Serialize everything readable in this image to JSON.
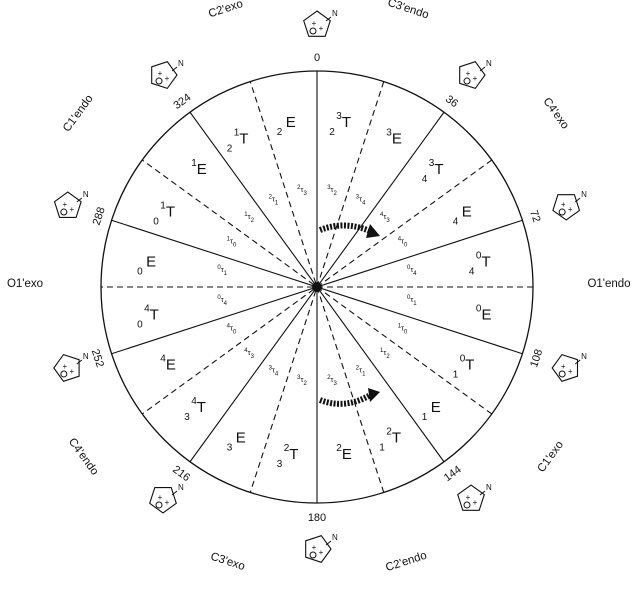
{
  "degree_labels": [
    "0",
    "36",
    "72",
    "108",
    "144",
    "180",
    "216",
    "252",
    "288",
    "324"
  ],
  "conformation_labels": [
    {
      "text": "C2'exo"
    },
    {
      "text": "C3'endo"
    },
    {
      "text": "C4'exo"
    },
    {
      "text": "O1'endo"
    },
    {
      "text": "C1'exo"
    },
    {
      "text": "C2'endo"
    },
    {
      "text": "C3'exo"
    },
    {
      "text": "C4'endo"
    },
    {
      "text": "O1'exo"
    },
    {
      "text": "C1'endo"
    }
  ],
  "outer_symbols": [
    {
      "sup": "3",
      "base": "T",
      "sub": "2",
      "kind": "T"
    },
    {
      "sup": "3",
      "base": "E",
      "sub": "",
      "kind": "E"
    },
    {
      "sup": "3",
      "base": "T",
      "sub": "4",
      "kind": "T"
    },
    {
      "sup": "",
      "base": "E",
      "sub": "4",
      "kind": "E"
    },
    {
      "sup": "0",
      "base": "T",
      "sub": "4",
      "kind": "T"
    },
    {
      "sup": "0",
      "base": "E",
      "sub": "",
      "kind": "E"
    },
    {
      "sup": "0",
      "base": "T",
      "sub": "1",
      "kind": "T"
    },
    {
      "sup": "",
      "base": "E",
      "sub": "1",
      "kind": "E"
    },
    {
      "sup": "2",
      "base": "T",
      "sub": "1",
      "kind": "T"
    },
    {
      "sup": "2",
      "base": "E",
      "sub": "",
      "kind": "E"
    },
    {
      "sup": "2",
      "base": "T",
      "sub": "3",
      "kind": "T"
    },
    {
      "sup": "",
      "base": "E",
      "sub": "3",
      "kind": "E"
    },
    {
      "sup": "4",
      "base": "T",
      "sub": "3",
      "kind": "T"
    },
    {
      "sup": "4",
      "base": "E",
      "sub": "",
      "kind": "E"
    },
    {
      "sup": "4",
      "base": "T",
      "sub": "0",
      "kind": "T"
    },
    {
      "sup": "",
      "base": "E",
      "sub": "0",
      "kind": "E"
    },
    {
      "sup": "1",
      "base": "T",
      "sub": "0",
      "kind": "T"
    },
    {
      "sup": "1",
      "base": "E",
      "sub": "",
      "kind": "E"
    },
    {
      "sup": "1",
      "base": "T",
      "sub": "2",
      "kind": "T"
    },
    {
      "sup": "",
      "base": "E",
      "sub": "2",
      "kind": "E"
    }
  ],
  "inner_symbols": [
    {
      "sup": "3",
      "base": "τ",
      "sub": "2"
    },
    {
      "sup": "3",
      "base": "τ",
      "sub": "4"
    },
    {
      "sup": "4",
      "base": "τ",
      "sub": "3"
    },
    {
      "sup": "4",
      "base": "τ",
      "sub": "0"
    },
    {
      "sup": "0",
      "base": "τ",
      "sub": "4"
    },
    {
      "sup": "0",
      "base": "τ",
      "sub": "1"
    },
    {
      "sup": "1",
      "base": "τ",
      "sub": "0"
    },
    {
      "sup": "1",
      "base": "τ",
      "sub": "2"
    },
    {
      "sup": "2",
      "base": "τ",
      "sub": "1"
    },
    {
      "sup": "2",
      "base": "τ",
      "sub": "3"
    },
    {
      "sup": "3",
      "base": "τ",
      "sub": "2"
    },
    {
      "sup": "3",
      "base": "τ",
      "sub": "4"
    },
    {
      "sup": "4",
      "base": "τ",
      "sub": "3"
    },
    {
      "sup": "4",
      "base": "τ",
      "sub": "0"
    },
    {
      "sup": "0",
      "base": "τ",
      "sub": "4"
    },
    {
      "sup": "0",
      "base": "τ",
      "sub": "1"
    },
    {
      "sup": "1",
      "base": "τ",
      "sub": "0"
    },
    {
      "sup": "1",
      "base": "τ",
      "sub": "2"
    },
    {
      "sup": "2",
      "base": "τ",
      "sub": "1"
    },
    {
      "sup": "2",
      "base": "τ",
      "sub": "3"
    }
  ],
  "ring_atom_label": "N"
}
